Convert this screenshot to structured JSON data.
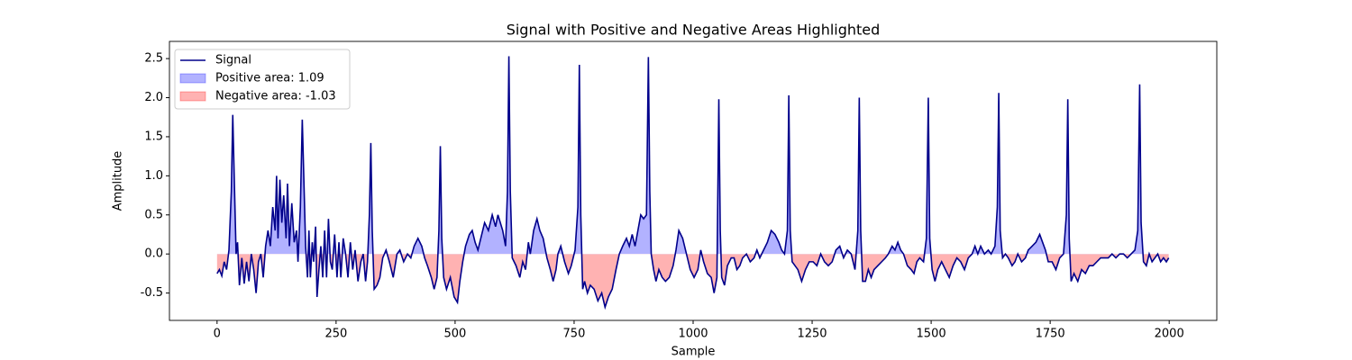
{
  "chart_data": {
    "type": "line",
    "title": "Signal with Positive and Negative Areas Highlighted",
    "x_label": "Sample",
    "y_label": "Amplitude",
    "x": [
      0,
      5,
      10,
      15,
      20,
      25,
      30,
      33,
      36,
      40,
      43,
      47,
      52,
      57,
      62,
      67,
      72,
      77,
      82,
      87,
      92,
      97,
      102,
      107,
      112,
      117,
      122,
      125,
      128,
      132,
      136,
      140,
      145,
      148,
      152,
      157,
      162,
      167,
      170,
      175,
      179,
      183,
      186,
      190,
      193,
      196,
      200,
      203,
      207,
      210,
      214,
      218,
      222,
      226,
      230,
      234,
      238,
      242,
      247,
      252,
      256,
      260,
      265,
      270,
      275,
      280,
      285,
      290,
      296,
      302,
      307,
      312,
      316,
      320,
      323,
      326,
      330,
      336,
      342,
      348,
      355,
      362,
      370,
      378,
      384,
      392,
      400,
      407,
      414,
      422,
      430,
      436,
      442,
      450,
      456,
      462,
      466,
      469,
      472,
      476,
      482,
      490,
      498,
      505,
      510,
      516,
      522,
      530,
      536,
      542,
      548,
      554,
      562,
      570,
      578,
      585,
      590,
      600,
      606,
      610,
      613,
      616,
      620,
      628,
      636,
      642,
      648,
      654,
      658,
      665,
      672,
      678,
      685,
      693,
      700,
      706,
      712,
      716,
      722,
      730,
      738,
      744,
      752,
      758,
      761,
      764,
      768,
      772,
      778,
      784,
      792,
      800,
      808,
      815,
      822,
      830,
      838,
      845,
      852,
      860,
      866,
      872,
      878,
      884,
      890,
      896,
      902,
      906,
      909,
      912,
      917,
      922,
      928,
      935,
      942,
      950,
      958,
      964,
      970,
      978,
      986,
      994,
      1002,
      1010,
      1016,
      1022,
      1030,
      1038,
      1044,
      1050,
      1054,
      1057,
      1060,
      1066,
      1072,
      1080,
      1086,
      1092,
      1098,
      1104,
      1112,
      1120,
      1128,
      1134,
      1140,
      1148,
      1156,
      1164,
      1172,
      1180,
      1186,
      1192,
      1198,
      1201,
      1204,
      1208,
      1214,
      1220,
      1228,
      1236,
      1244,
      1252,
      1260,
      1268,
      1276,
      1284,
      1292,
      1300,
      1308,
      1316,
      1324,
      1332,
      1340,
      1346,
      1349,
      1352,
      1356,
      1362,
      1368,
      1374,
      1380,
      1388,
      1396,
      1404,
      1410,
      1418,
      1424,
      1430,
      1436,
      1442,
      1450,
      1458,
      1464,
      1470,
      1476,
      1484,
      1490,
      1494,
      1497,
      1502,
      1508,
      1514,
      1522,
      1530,
      1538,
      1546,
      1554,
      1562,
      1570,
      1578,
      1586,
      1592,
      1598,
      1604,
      1612,
      1620,
      1626,
      1634,
      1639,
      1642,
      1645,
      1650,
      1656,
      1662,
      1670,
      1676,
      1682,
      1690,
      1698,
      1704,
      1712,
      1720,
      1728,
      1734,
      1740,
      1746,
      1754,
      1762,
      1770,
      1778,
      1784,
      1787,
      1790,
      1794,
      1800,
      1808,
      1816,
      1824,
      1832,
      1840,
      1848,
      1856,
      1864,
      1872,
      1880,
      1888,
      1896,
      1904,
      1912,
      1920,
      1928,
      1934,
      1938,
      1941,
      1946,
      1952,
      1958,
      1964,
      1970,
      1976,
      1982,
      1988,
      1994,
      1999
    ],
    "series": [
      {
        "name": "Signal",
        "color": "#00008b",
        "values": [
          -0.25,
          -0.2,
          -0.28,
          -0.1,
          -0.2,
          0.05,
          0.8,
          1.78,
          1.0,
          0.0,
          0.15,
          -0.4,
          -0.05,
          -0.38,
          -0.1,
          -0.35,
          0.0,
          -0.2,
          -0.5,
          -0.1,
          0.0,
          -0.3,
          0.1,
          0.3,
          0.1,
          0.6,
          0.3,
          1.0,
          0.2,
          0.95,
          0.4,
          0.75,
          0.2,
          0.9,
          0.1,
          0.65,
          0.15,
          0.3,
          -0.1,
          0.6,
          1.72,
          0.8,
          0.1,
          -0.3,
          0.3,
          -0.3,
          0.15,
          -0.1,
          0.35,
          -0.55,
          -0.2,
          0.1,
          -0.3,
          0.3,
          -0.3,
          0.45,
          -0.1,
          -0.2,
          0.25,
          -0.3,
          0.15,
          -0.3,
          0.2,
          0.0,
          -0.3,
          0.15,
          -0.2,
          0.05,
          -0.35,
          -0.1,
          0.0,
          -0.35,
          -0.1,
          0.5,
          1.42,
          0.3,
          -0.45,
          -0.4,
          -0.3,
          -0.05,
          0.05,
          -0.1,
          -0.3,
          0.0,
          0.05,
          -0.1,
          0.0,
          -0.05,
          0.1,
          0.2,
          0.1,
          -0.05,
          -0.15,
          -0.3,
          -0.45,
          -0.3,
          0.3,
          1.38,
          0.2,
          -0.3,
          -0.45,
          -0.3,
          -0.55,
          -0.62,
          -0.35,
          -0.1,
          0.1,
          0.25,
          0.3,
          0.15,
          0.05,
          0.2,
          0.4,
          0.3,
          0.5,
          0.35,
          0.5,
          0.3,
          0.1,
          0.8,
          2.53,
          0.8,
          -0.05,
          -0.15,
          -0.3,
          -0.1,
          -0.2,
          0.15,
          0.0,
          0.3,
          0.45,
          0.3,
          0.2,
          -0.05,
          -0.2,
          -0.35,
          -0.2,
          0.0,
          0.1,
          -0.1,
          -0.25,
          -0.15,
          0.05,
          0.6,
          2.42,
          0.5,
          -0.45,
          -0.35,
          -0.5,
          -0.4,
          -0.45,
          -0.6,
          -0.5,
          -0.68,
          -0.55,
          -0.45,
          -0.2,
          0.0,
          0.1,
          0.2,
          0.1,
          0.25,
          0.1,
          0.3,
          0.5,
          0.45,
          0.5,
          2.52,
          0.8,
          0.0,
          -0.2,
          -0.35,
          -0.2,
          -0.3,
          -0.35,
          -0.3,
          -0.15,
          0.05,
          0.3,
          0.2,
          0.0,
          -0.2,
          -0.3,
          -0.2,
          0.05,
          -0.1,
          -0.25,
          -0.3,
          -0.5,
          -0.3,
          1.98,
          0.3,
          -0.3,
          -0.4,
          -0.15,
          -0.05,
          -0.05,
          -0.2,
          -0.15,
          -0.05,
          0.0,
          -0.1,
          -0.05,
          0.05,
          -0.05,
          0.05,
          0.15,
          0.3,
          0.25,
          0.15,
          0.05,
          0.0,
          0.3,
          2.03,
          0.3,
          -0.1,
          -0.15,
          -0.2,
          -0.35,
          -0.2,
          -0.1,
          -0.1,
          -0.15,
          0.0,
          -0.1,
          -0.15,
          -0.1,
          0.05,
          0.1,
          -0.05,
          0.05,
          0.0,
          -0.2,
          0.3,
          2.0,
          0.3,
          -0.35,
          -0.35,
          -0.2,
          -0.3,
          -0.2,
          -0.15,
          -0.1,
          -0.05,
          0.0,
          0.1,
          0.05,
          0.15,
          0.05,
          0.0,
          -0.15,
          -0.2,
          -0.25,
          -0.1,
          -0.05,
          -0.1,
          0.2,
          2.0,
          0.2,
          -0.2,
          -0.35,
          -0.2,
          -0.1,
          -0.2,
          -0.3,
          -0.15,
          -0.05,
          -0.1,
          -0.2,
          -0.05,
          0.0,
          0.1,
          0.0,
          0.1,
          0.0,
          0.05,
          0.0,
          0.1,
          0.6,
          2.06,
          0.3,
          -0.05,
          0.0,
          -0.05,
          -0.15,
          -0.1,
          0.0,
          -0.1,
          -0.05,
          0.05,
          0.1,
          0.15,
          0.25,
          0.15,
          0.05,
          -0.1,
          -0.1,
          -0.2,
          -0.05,
          0.0,
          0.5,
          1.98,
          0.2,
          -0.35,
          -0.25,
          -0.35,
          -0.2,
          -0.25,
          -0.15,
          -0.15,
          -0.1,
          -0.05,
          -0.05,
          -0.05,
          0.0,
          -0.05,
          0.0,
          0.0,
          -0.05,
          0.0,
          0.05,
          0.3,
          2.17,
          0.4,
          -0.1,
          -0.15,
          0.0,
          -0.1,
          -0.05,
          0.0,
          -0.1,
          -0.05,
          -0.1,
          -0.05
        ]
      }
    ],
    "areas": [
      {
        "name": "Positive area: 1.09",
        "color": "#0000ff",
        "side": "positive"
      },
      {
        "name": "Negative area: -1.03",
        "color": "#ff0000",
        "side": "negative"
      }
    ],
    "xlim": [
      -100,
      2100
    ],
    "xticks": [
      0,
      250,
      500,
      750,
      1000,
      1250,
      1500,
      1750,
      2000
    ],
    "ylim": [
      -0.85,
      2.72
    ],
    "yticks": [
      -0.5,
      {
        "value": 0,
        "label": "0.0"
      },
      0.5,
      {
        "value": 1,
        "label": "1.0"
      },
      1.5,
      {
        "value": 2,
        "label": "2.0"
      },
      2.5
    ],
    "grid": false,
    "legend": "upper left"
  }
}
